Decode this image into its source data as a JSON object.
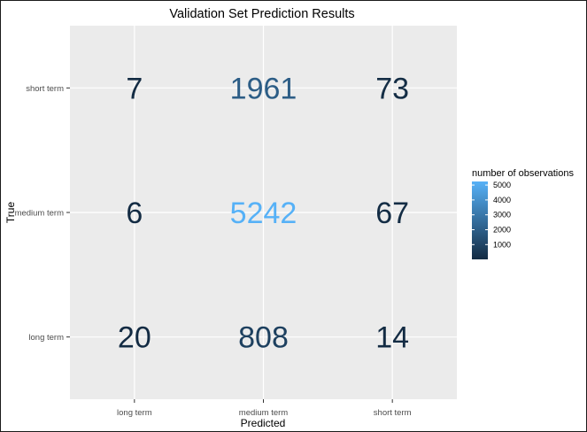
{
  "chart_data": {
    "type": "heatmap",
    "title": "Validation Set Prediction Results",
    "xlabel": "Predicted",
    "ylabel": "True",
    "x_categories": [
      "long term",
      "medium term",
      "short term"
    ],
    "y_categories": [
      "long term",
      "medium term",
      "short term"
    ],
    "cells": [
      {
        "true": "short term",
        "predicted": "long term",
        "value": 7
      },
      {
        "true": "short term",
        "predicted": "medium term",
        "value": 1961
      },
      {
        "true": "short term",
        "predicted": "short term",
        "value": 73
      },
      {
        "true": "medium term",
        "predicted": "long term",
        "value": 6
      },
      {
        "true": "medium term",
        "predicted": "medium term",
        "value": 5242
      },
      {
        "true": "medium term",
        "predicted": "short term",
        "value": 67
      },
      {
        "true": "long term",
        "predicted": "long term",
        "value": 20
      },
      {
        "true": "long term",
        "predicted": "medium term",
        "value": 808
      },
      {
        "true": "long term",
        "predicted": "short term",
        "value": 14
      }
    ],
    "legend": {
      "title": "number of observations",
      "ticks": [
        1000,
        2000,
        3000,
        4000,
        5000
      ],
      "range": [
        6,
        5242
      ],
      "placement": "right"
    },
    "colors": {
      "low": "#132B43",
      "high": "#56B1F7",
      "panel_background": "#EBEBEB",
      "grid": "#FFFFFF"
    },
    "grid": true
  }
}
